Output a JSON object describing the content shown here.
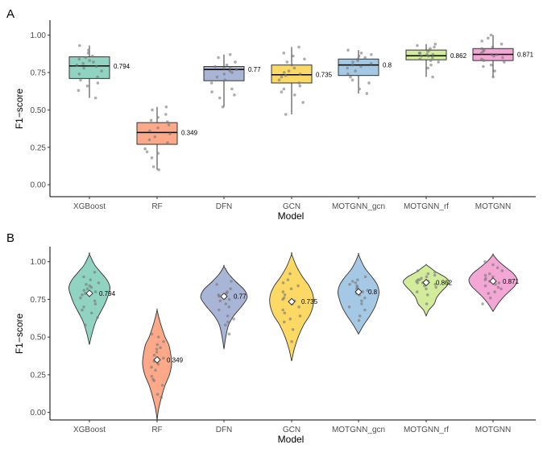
{
  "chart_data": [
    {
      "panel_label": "A",
      "type": "boxplot",
      "xlabel": "Model",
      "ylabel": "F1−score",
      "categories": [
        "XGBoost",
        "RF",
        "DFN",
        "GCN",
        "MOTGNN_gcn",
        "MOTGNN_rf",
        "MOTGNN"
      ],
      "ylim": [
        -0.08,
        1.1
      ],
      "yticks": [
        0.0,
        0.25,
        0.5,
        0.75,
        1.0
      ],
      "ytick_labels": [
        "0.00",
        "0.25",
        "0.50",
        "0.75",
        "1.00"
      ],
      "colors": [
        "#8fd3c0",
        "#fca98a",
        "#a9b5d6",
        "#fcd965",
        "#a5c8e4",
        "#d2ec9b",
        "#f2a7d5"
      ],
      "boxes": [
        {
          "q1": 0.71,
          "median": 0.794,
          "q3": 0.855,
          "whisker_low": 0.58,
          "whisker_high": 0.93
        },
        {
          "q1": 0.27,
          "median": 0.349,
          "q3": 0.415,
          "whisker_low": 0.1,
          "whisker_high": 0.52
        },
        {
          "q1": 0.695,
          "median": 0.77,
          "q3": 0.79,
          "whisker_low": 0.52,
          "whisker_high": 0.87
        },
        {
          "q1": 0.68,
          "median": 0.735,
          "q3": 0.8,
          "whisker_low": 0.47,
          "whisker_high": 0.92
        },
        {
          "q1": 0.73,
          "median": 0.8,
          "q3": 0.84,
          "whisker_low": 0.61,
          "whisker_high": 0.9
        },
        {
          "q1": 0.835,
          "median": 0.862,
          "q3": 0.9,
          "whisker_low": 0.72,
          "whisker_high": 0.94
        },
        {
          "q1": 0.83,
          "median": 0.871,
          "q3": 0.91,
          "whisker_low": 0.72,
          "whisker_high": 1.0
        }
      ],
      "median_labels": [
        "0.794",
        "0.349",
        "0.77",
        "0.735",
        "0.8",
        "0.862",
        "0.871"
      ],
      "points": [
        [
          0.58,
          0.63,
          0.66,
          0.68,
          0.7,
          0.72,
          0.74,
          0.76,
          0.78,
          0.79,
          0.8,
          0.81,
          0.82,
          0.83,
          0.84,
          0.85,
          0.86,
          0.88,
          0.9,
          0.93
        ],
        [
          0.1,
          0.12,
          0.18,
          0.21,
          0.22,
          0.24,
          0.28,
          0.3,
          0.32,
          0.34,
          0.36,
          0.38,
          0.4,
          0.42,
          0.43,
          0.45,
          0.47,
          0.5,
          0.52
        ],
        [
          0.52,
          0.58,
          0.6,
          0.62,
          0.64,
          0.68,
          0.7,
          0.72,
          0.74,
          0.75,
          0.76,
          0.77,
          0.78,
          0.78,
          0.79,
          0.8,
          0.82,
          0.85,
          0.87
        ],
        [
          0.47,
          0.55,
          0.6,
          0.62,
          0.64,
          0.66,
          0.68,
          0.7,
          0.72,
          0.73,
          0.74,
          0.75,
          0.76,
          0.78,
          0.8,
          0.82,
          0.84,
          0.86,
          0.88,
          0.92
        ],
        [
          0.61,
          0.64,
          0.68,
          0.7,
          0.72,
          0.74,
          0.76,
          0.78,
          0.79,
          0.8,
          0.81,
          0.82,
          0.83,
          0.84,
          0.85,
          0.86,
          0.87,
          0.88,
          0.9
        ],
        [
          0.72,
          0.78,
          0.8,
          0.82,
          0.83,
          0.84,
          0.85,
          0.86,
          0.86,
          0.87,
          0.87,
          0.88,
          0.88,
          0.89,
          0.9,
          0.91,
          0.92,
          0.93,
          0.94
        ],
        [
          0.72,
          0.76,
          0.79,
          0.8,
          0.82,
          0.83,
          0.84,
          0.85,
          0.86,
          0.87,
          0.87,
          0.88,
          0.89,
          0.9,
          0.91,
          0.92,
          0.94,
          0.96,
          0.98,
          1.0
        ]
      ]
    },
    {
      "panel_label": "B",
      "type": "violin",
      "xlabel": "Model",
      "ylabel": "F1−score",
      "categories": [
        "XGBoost",
        "RF",
        "DFN",
        "GCN",
        "MOTGNN_gcn",
        "MOTGNN_rf",
        "MOTGNN"
      ],
      "ylim": [
        -0.05,
        1.1
      ],
      "yticks": [
        0.0,
        0.25,
        0.5,
        0.75,
        1.0
      ],
      "ytick_labels": [
        "0.00",
        "0.25",
        "0.50",
        "0.75",
        "1.00"
      ],
      "colors": [
        "#8fd3c0",
        "#fca98a",
        "#a9b5d6",
        "#fcd965",
        "#a5c8e4",
        "#d2ec9b",
        "#f2a7d5"
      ],
      "violins": [
        {
          "ymin": 0.45,
          "ymax": 1.05,
          "means": [
            0.79
          ],
          "shape": [
            [
              0.45,
              0.0
            ],
            [
              0.52,
              0.12
            ],
            [
              0.6,
              0.3
            ],
            [
              0.66,
              0.52
            ],
            [
              0.72,
              0.75
            ],
            [
              0.78,
              0.92
            ],
            [
              0.83,
              1.0
            ],
            [
              0.88,
              0.85
            ],
            [
              0.93,
              0.55
            ],
            [
              0.98,
              0.25
            ],
            [
              1.05,
              0.0
            ]
          ]
        },
        {
          "ymin": -0.05,
          "ymax": 0.68,
          "means": [
            0.349
          ],
          "shape": [
            [
              -0.05,
              0.0
            ],
            [
              0.02,
              0.1
            ],
            [
              0.1,
              0.3
            ],
            [
              0.18,
              0.55
            ],
            [
              0.25,
              0.85
            ],
            [
              0.32,
              1.0
            ],
            [
              0.38,
              0.95
            ],
            [
              0.45,
              0.8
            ],
            [
              0.5,
              0.55
            ],
            [
              0.57,
              0.3
            ],
            [
              0.63,
              0.12
            ],
            [
              0.68,
              0.0
            ]
          ]
        },
        {
          "ymin": 0.42,
          "ymax": 0.97,
          "means": [
            0.77
          ],
          "shape": [
            [
              0.42,
              0.0
            ],
            [
              0.5,
              0.08
            ],
            [
              0.58,
              0.2
            ],
            [
              0.64,
              0.42
            ],
            [
              0.7,
              0.75
            ],
            [
              0.75,
              0.98
            ],
            [
              0.78,
              1.0
            ],
            [
              0.82,
              0.85
            ],
            [
              0.87,
              0.5
            ],
            [
              0.92,
              0.2
            ],
            [
              0.97,
              0.0
            ]
          ]
        },
        {
          "ymin": 0.34,
          "ymax": 1.05,
          "means": [
            0.735
          ],
          "shape": [
            [
              0.34,
              0.0
            ],
            [
              0.42,
              0.12
            ],
            [
              0.5,
              0.3
            ],
            [
              0.58,
              0.55
            ],
            [
              0.65,
              0.85
            ],
            [
              0.72,
              1.0
            ],
            [
              0.78,
              0.98
            ],
            [
              0.84,
              0.8
            ],
            [
              0.9,
              0.5
            ],
            [
              0.97,
              0.22
            ],
            [
              1.05,
              0.0
            ]
          ]
        },
        {
          "ymin": 0.52,
          "ymax": 1.05,
          "means": [
            0.8
          ],
          "shape": [
            [
              0.52,
              0.0
            ],
            [
              0.58,
              0.25
            ],
            [
              0.64,
              0.55
            ],
            [
              0.7,
              0.8
            ],
            [
              0.76,
              0.95
            ],
            [
              0.8,
              1.0
            ],
            [
              0.85,
              0.9
            ],
            [
              0.9,
              0.65
            ],
            [
              0.95,
              0.35
            ],
            [
              1.0,
              0.15
            ],
            [
              1.05,
              0.0
            ]
          ]
        },
        {
          "ymin": 0.64,
          "ymax": 0.98,
          "means": [
            0.862
          ],
          "shape": [
            [
              0.64,
              0.0
            ],
            [
              0.68,
              0.12
            ],
            [
              0.72,
              0.35
            ],
            [
              0.76,
              0.45
            ],
            [
              0.8,
              0.65
            ],
            [
              0.84,
              0.9
            ],
            [
              0.87,
              1.0
            ],
            [
              0.9,
              0.8
            ],
            [
              0.93,
              0.45
            ],
            [
              0.96,
              0.18
            ],
            [
              0.98,
              0.0
            ]
          ]
        },
        {
          "ymin": 0.67,
          "ymax": 1.05,
          "means": [
            0.871
          ],
          "shape": [
            [
              0.67,
              0.0
            ],
            [
              0.72,
              0.2
            ],
            [
              0.76,
              0.4
            ],
            [
              0.8,
              0.65
            ],
            [
              0.84,
              0.9
            ],
            [
              0.88,
              1.0
            ],
            [
              0.92,
              0.85
            ],
            [
              0.96,
              0.55
            ],
            [
              1.0,
              0.25
            ],
            [
              1.03,
              0.08
            ],
            [
              1.05,
              0.0
            ]
          ]
        }
      ],
      "violin_half_width_fraction": [
        0.85,
        0.6,
        0.95,
        0.9,
        0.85,
        0.95,
        1.0
      ],
      "median_labels": [
        "0.794",
        "0.349",
        "0.77",
        "0.735",
        "0.8",
        "0.862",
        "0.871"
      ],
      "points": [
        [
          0.58,
          0.63,
          0.66,
          0.68,
          0.7,
          0.72,
          0.74,
          0.76,
          0.78,
          0.79,
          0.8,
          0.81,
          0.82,
          0.83,
          0.84,
          0.85,
          0.86,
          0.88,
          0.9,
          0.93
        ],
        [
          0.1,
          0.12,
          0.18,
          0.21,
          0.22,
          0.24,
          0.28,
          0.3,
          0.32,
          0.34,
          0.36,
          0.38,
          0.4,
          0.42,
          0.43,
          0.45,
          0.47,
          0.5,
          0.52
        ],
        [
          0.52,
          0.58,
          0.6,
          0.62,
          0.64,
          0.68,
          0.7,
          0.72,
          0.74,
          0.75,
          0.76,
          0.77,
          0.78,
          0.78,
          0.79,
          0.8,
          0.82,
          0.85,
          0.87
        ],
        [
          0.47,
          0.55,
          0.6,
          0.62,
          0.64,
          0.66,
          0.68,
          0.7,
          0.72,
          0.73,
          0.74,
          0.75,
          0.76,
          0.78,
          0.8,
          0.82,
          0.84,
          0.86,
          0.88,
          0.92
        ],
        [
          0.61,
          0.64,
          0.68,
          0.7,
          0.72,
          0.74,
          0.76,
          0.78,
          0.79,
          0.8,
          0.81,
          0.82,
          0.83,
          0.84,
          0.85,
          0.86,
          0.87,
          0.88,
          0.9
        ],
        [
          0.72,
          0.78,
          0.8,
          0.82,
          0.83,
          0.84,
          0.85,
          0.86,
          0.86,
          0.87,
          0.87,
          0.88,
          0.88,
          0.89,
          0.9,
          0.91,
          0.92,
          0.93,
          0.94
        ],
        [
          0.72,
          0.76,
          0.79,
          0.8,
          0.82,
          0.83,
          0.84,
          0.85,
          0.86,
          0.87,
          0.87,
          0.88,
          0.89,
          0.9,
          0.91,
          0.92,
          0.94,
          0.96,
          0.98,
          1.0
        ]
      ]
    }
  ]
}
